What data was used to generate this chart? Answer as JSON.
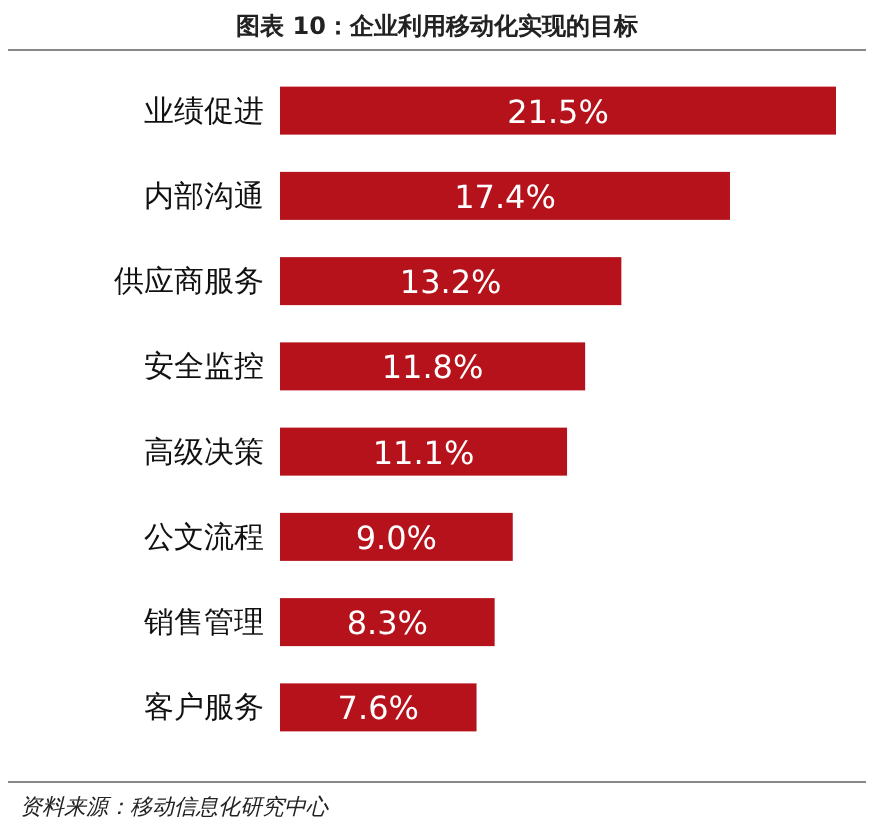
{
  "chart_data": {
    "type": "bar",
    "orientation": "horizontal",
    "title": "图表 10：企业利用移动化实现的目标",
    "categories": [
      "业绩促进",
      "内部沟通",
      "供应商服务",
      "安全监控",
      "高级决策",
      "公文流程",
      "销售管理",
      "客户服务"
    ],
    "values": [
      21.5,
      17.4,
      13.2,
      11.8,
      11.1,
      9.0,
      8.3,
      7.6
    ],
    "value_labels": [
      "21.5%",
      "17.4%",
      "13.2%",
      "11.8%",
      "11.1%",
      "9.0%",
      "8.3%",
      "7.6%"
    ],
    "color": "#b5121b",
    "annotations": [
      "资料来源：移动信息化研究中心"
    ]
  }
}
